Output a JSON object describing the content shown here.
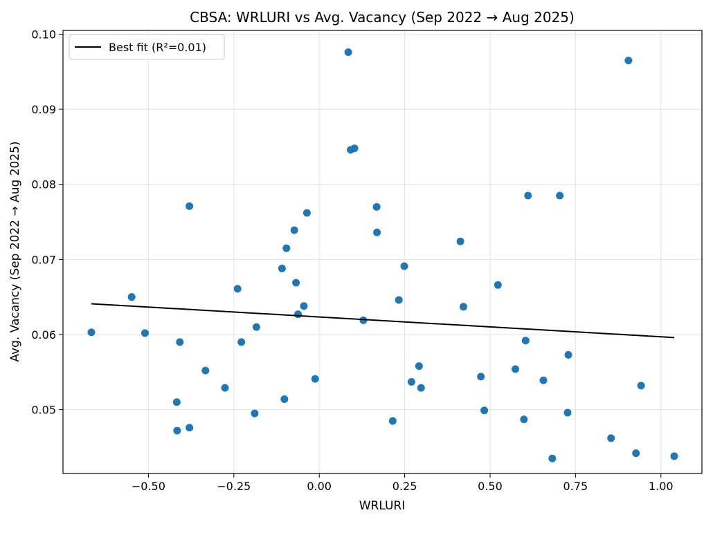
{
  "chart_data": {
    "type": "scatter",
    "title": "CBSA: WRLURI vs Avg. Vacancy (Sep 2022 → Aug 2025)",
    "xlabel": "WRLURI",
    "ylabel": "Avg. Vacancy (Sep 2022 → Aug 2025)",
    "xlim": [
      -0.75,
      1.12
    ],
    "ylim": [
      0.0415,
      0.1005
    ],
    "grid": true,
    "legend_position": "top-left",
    "x_ticks": [
      -0.5,
      -0.25,
      0.0,
      0.25,
      0.5,
      0.75,
      1.0
    ],
    "x_tick_labels": [
      "−0.50",
      "−0.25",
      "0.00",
      "0.25",
      "0.50",
      "0.75",
      "1.00"
    ],
    "y_ticks": [
      0.05,
      0.06,
      0.07,
      0.08,
      0.09,
      0.1
    ],
    "y_tick_labels": [
      "0.05",
      "0.06",
      "0.07",
      "0.08",
      "0.09",
      "0.10"
    ],
    "series": [
      {
        "name": "CBSA",
        "color": "#1f77b4",
        "points": [
          [
            -0.667,
            0.0603
          ],
          [
            -0.549,
            0.065
          ],
          [
            -0.51,
            0.0602
          ],
          [
            -0.408,
            0.059
          ],
          [
            -0.417,
            0.051
          ],
          [
            -0.416,
            0.0472
          ],
          [
            -0.38,
            0.0771
          ],
          [
            -0.38,
            0.0476
          ],
          [
            -0.333,
            0.0552
          ],
          [
            -0.276,
            0.0529
          ],
          [
            -0.239,
            0.0661
          ],
          [
            -0.228,
            0.059
          ],
          [
            -0.189,
            0.0495
          ],
          [
            -0.184,
            0.061
          ],
          [
            -0.109,
            0.0688
          ],
          [
            -0.102,
            0.0514
          ],
          [
            -0.096,
            0.0715
          ],
          [
            -0.073,
            0.0739
          ],
          [
            -0.068,
            0.0669
          ],
          [
            -0.062,
            0.0627
          ],
          [
            -0.045,
            0.0638
          ],
          [
            -0.036,
            0.0762
          ],
          [
            -0.012,
            0.0541
          ],
          [
            0.085,
            0.0976
          ],
          [
            0.092,
            0.0846
          ],
          [
            0.103,
            0.0848
          ],
          [
            0.129,
            0.0619
          ],
          [
            0.168,
            0.077
          ],
          [
            0.169,
            0.0736
          ],
          [
            0.215,
            0.0485
          ],
          [
            0.233,
            0.0646
          ],
          [
            0.249,
            0.0691
          ],
          [
            0.27,
            0.0537
          ],
          [
            0.292,
            0.0558
          ],
          [
            0.298,
            0.0529
          ],
          [
            0.413,
            0.0724
          ],
          [
            0.422,
            0.0637
          ],
          [
            0.473,
            0.0544
          ],
          [
            0.483,
            0.0499
          ],
          [
            0.523,
            0.0666
          ],
          [
            0.574,
            0.0554
          ],
          [
            0.599,
            0.0487
          ],
          [
            0.604,
            0.0592
          ],
          [
            0.611,
            0.0785
          ],
          [
            0.656,
            0.0539
          ],
          [
            0.682,
            0.0435
          ],
          [
            0.704,
            0.0785
          ],
          [
            0.727,
            0.0496
          ],
          [
            0.729,
            0.0573
          ],
          [
            0.854,
            0.0462
          ],
          [
            0.905,
            0.0965
          ],
          [
            0.927,
            0.0442
          ],
          [
            0.942,
            0.0532
          ],
          [
            1.039,
            0.0438
          ]
        ]
      }
    ],
    "fit": {
      "name": "Best fit (R²=0.01)",
      "color": "#000000",
      "x": [
        -0.667,
        1.039
      ],
      "y": [
        0.0641,
        0.0596
      ]
    }
  }
}
